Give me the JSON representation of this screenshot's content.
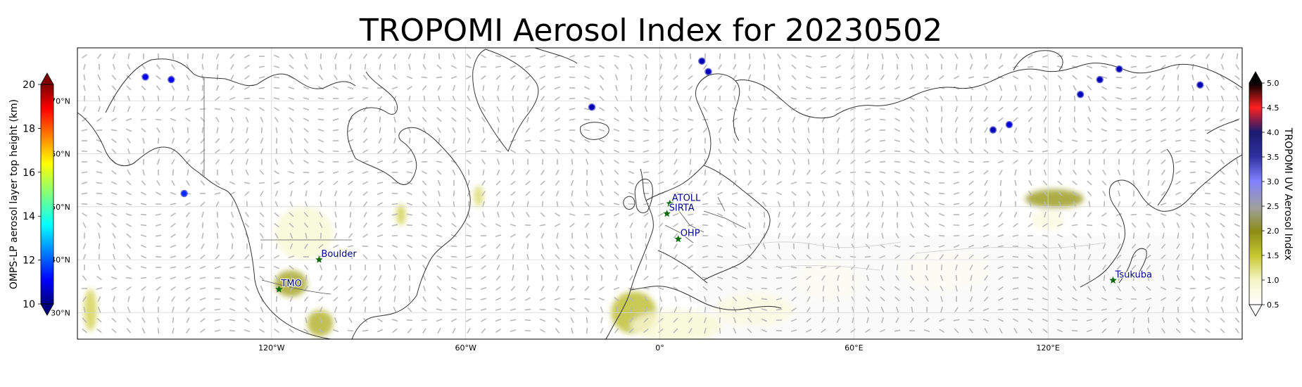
{
  "title": "TROPOMI Aerosol Index for 20230502",
  "map": {
    "extent": {
      "lon": [
        -180,
        180
      ],
      "lat": [
        25,
        80
      ]
    },
    "lon_ticks": [
      {
        "lon": -120,
        "label": "120°W"
      },
      {
        "lon": -60,
        "label": "60°W"
      },
      {
        "lon": 0,
        "label": "0°"
      },
      {
        "lon": 60,
        "label": "60°E"
      },
      {
        "lon": 120,
        "label": "120°E"
      }
    ],
    "lat_ticks": [
      {
        "lat": 70,
        "label": "70°N"
      },
      {
        "lat": 60,
        "label": "60°N"
      },
      {
        "lat": 50,
        "label": "50°N"
      },
      {
        "lat": 40,
        "label": "40°N"
      },
      {
        "lat": 30,
        "label": "30°N"
      }
    ],
    "gridlines": true
  },
  "left_colorbar": {
    "label": "OMPS-LP aerosol layer top height (km)",
    "range": [
      10,
      20
    ],
    "ticks": [
      "20",
      "18",
      "16",
      "14",
      "12",
      "10"
    ],
    "extend": "both",
    "colormap": "jet"
  },
  "right_colorbar": {
    "label": "TROPOMI UV Aerosol Index",
    "range": [
      0.5,
      5.0
    ],
    "ticks": [
      "5.0",
      "4.5",
      "4.0",
      "3.5",
      "3.0",
      "2.5",
      "2.0",
      "1.5",
      "1.0",
      "0.5"
    ],
    "extend": "both",
    "colormap": "aerosol"
  },
  "stations": [
    {
      "name": "TMO",
      "lon": -117.7,
      "lat": 34.4
    },
    {
      "name": "Boulder",
      "lon": -105.3,
      "lat": 40.0
    },
    {
      "name": "ATOLL",
      "lon": 3.1,
      "lat": 50.6
    },
    {
      "name": "SIRTA",
      "lon": 2.2,
      "lat": 48.7
    },
    {
      "name": "OHP",
      "lon": 5.7,
      "lat": 43.9
    },
    {
      "name": "Tsukuba",
      "lon": 140.1,
      "lat": 36.1
    }
  ],
  "omps_points": [
    {
      "lon": -159,
      "lat": 74.5,
      "height_km": 11.0
    },
    {
      "lon": -151,
      "lat": 74.0,
      "height_km": 11.0
    },
    {
      "lon": -147,
      "lat": 52.5,
      "height_km": 11.5
    },
    {
      "lon": -21,
      "lat": 68.8,
      "height_km": 10.5
    },
    {
      "lon": 13,
      "lat": 77.5,
      "height_km": 10.5
    },
    {
      "lon": 15,
      "lat": 75.5,
      "height_km": 10.5
    },
    {
      "lon": 103,
      "lat": 64.5,
      "height_km": 10.5
    },
    {
      "lon": 108,
      "lat": 65.5,
      "height_km": 10.8
    },
    {
      "lon": 130,
      "lat": 71.2,
      "height_km": 10.5
    },
    {
      "lon": 136,
      "lat": 74.0,
      "height_km": 10.5
    },
    {
      "lon": 142,
      "lat": 76.0,
      "height_km": 10.5
    },
    {
      "lon": 167,
      "lat": 73.0,
      "height_km": 10.5
    }
  ],
  "aerosol_patches": [
    {
      "lon": -110,
      "lat": 45.0,
      "rlon": 9,
      "rlat": 5,
      "ai": 0.9
    },
    {
      "lon": -114,
      "lat": 35.5,
      "rlon": 5,
      "rlat": 2.5,
      "ai": 1.8
    },
    {
      "lon": -105,
      "lat": 28.0,
      "rlon": 4,
      "rlat": 2.5,
      "ai": 1.7
    },
    {
      "lon": -80,
      "lat": 48.5,
      "rlon": 1.5,
      "rlat": 2,
      "ai": 1.4
    },
    {
      "lon": -56,
      "lat": 52.0,
      "rlon": 1.5,
      "rlat": 2,
      "ai": 1.3
    },
    {
      "lon": -8,
      "lat": 30.0,
      "rlon": 7,
      "rlat": 4,
      "ai": 1.6
    },
    {
      "lon": 5,
      "lat": 27.5,
      "rlon": 14,
      "rlat": 3,
      "ai": 0.9
    },
    {
      "lon": 29,
      "lat": 30.5,
      "rlon": 12,
      "rlat": 3,
      "ai": 0.8
    },
    {
      "lon": 52,
      "lat": 36.0,
      "rlon": 10,
      "rlat": 4,
      "ai": 0.6
    },
    {
      "lon": 88,
      "lat": 38.0,
      "rlon": 14,
      "rlat": 4,
      "ai": 0.6
    },
    {
      "lon": 122,
      "lat": 51.5,
      "rlon": 9,
      "rlat": 1.8,
      "ai": 1.9
    },
    {
      "lon": 120,
      "lat": 47.5,
      "rlon": 5,
      "rlat": 2,
      "ai": 0.8
    },
    {
      "lon": -176,
      "lat": 30.5,
      "rlon": 2,
      "rlat": 4,
      "ai": 1.4
    }
  ]
}
